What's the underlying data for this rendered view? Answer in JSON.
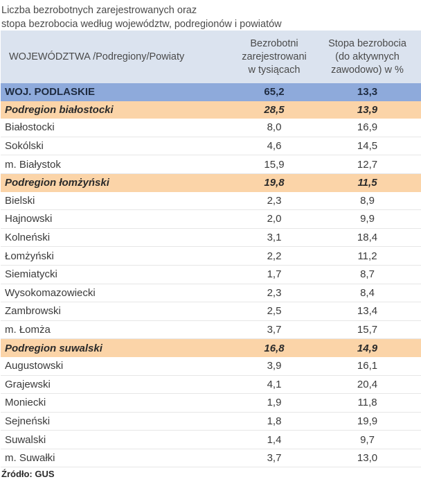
{
  "title": {
    "line1": "Liczba bezrobotnych zarejestrowanych oraz",
    "line2": "stopa bezrobocia według województw, podregionów  i  powiatów"
  },
  "headers": {
    "col1": "WOJEWÓDZTWA /Podregiony/Powiaty",
    "col2_l1": "Bezrobotni",
    "col2_l2": "zarejestrowani",
    "col2_l3": "w tysiącach",
    "col3_l1": "Stopa bezrobocia",
    "col3_l2": "(do aktywnych",
    "col3_l3": "zawodowo) w %"
  },
  "rows": [
    {
      "type": "region",
      "name": "WOJ. PODLASKIE",
      "unemployed": "65,2",
      "rate": "13,3"
    },
    {
      "type": "subregion",
      "name": "Podregion białostocki",
      "unemployed": "28,5",
      "rate": "13,9"
    },
    {
      "type": "county",
      "name": "Białostocki",
      "unemployed": "8,0",
      "rate": "16,9"
    },
    {
      "type": "county",
      "name": "Sokólski",
      "unemployed": "4,6",
      "rate": "14,5"
    },
    {
      "type": "county",
      "name": "m. Białystok",
      "unemployed": "15,9",
      "rate": "12,7"
    },
    {
      "type": "subregion",
      "name": "Podregion łomżyński",
      "unemployed": "19,8",
      "rate": "11,5"
    },
    {
      "type": "county",
      "name": "Bielski",
      "unemployed": "2,3",
      "rate": "8,9"
    },
    {
      "type": "county",
      "name": "Hajnowski",
      "unemployed": "2,0",
      "rate": "9,9"
    },
    {
      "type": "county",
      "name": "Kolneński",
      "unemployed": "3,1",
      "rate": "18,4"
    },
    {
      "type": "county",
      "name": "Łomżyński",
      "unemployed": "2,2",
      "rate": "11,2"
    },
    {
      "type": "county",
      "name": "Siemiatycki",
      "unemployed": "1,7",
      "rate": "8,7"
    },
    {
      "type": "county",
      "name": "Wysokomazowiecki",
      "unemployed": "2,3",
      "rate": "8,4"
    },
    {
      "type": "county",
      "name": "Zambrowski",
      "unemployed": "2,5",
      "rate": "13,4"
    },
    {
      "type": "county",
      "name": "m. Łomża",
      "unemployed": "3,7",
      "rate": "15,7"
    },
    {
      "type": "subregion",
      "name": "Podregion suwalski",
      "unemployed": "16,8",
      "rate": "14,9"
    },
    {
      "type": "county",
      "name": "Augustowski",
      "unemployed": "3,9",
      "rate": "16,1"
    },
    {
      "type": "county",
      "name": "Grajewski",
      "unemployed": "4,1",
      "rate": "20,4"
    },
    {
      "type": "county",
      "name": "Moniecki",
      "unemployed": "1,9",
      "rate": "11,8"
    },
    {
      "type": "county",
      "name": "Sejneński",
      "unemployed": "1,8",
      "rate": "19,9"
    },
    {
      "type": "county",
      "name": "Suwalski",
      "unemployed": "1,4",
      "rate": "9,7"
    },
    {
      "type": "county",
      "name": "m. Suwałki",
      "unemployed": "3,7",
      "rate": "13,0"
    }
  ],
  "source": "Źródło: GUS",
  "colors": {
    "header_bg": "#dbe3ef",
    "region_bg": "#8eaadb",
    "subregion_bg": "#fbd4a8"
  }
}
